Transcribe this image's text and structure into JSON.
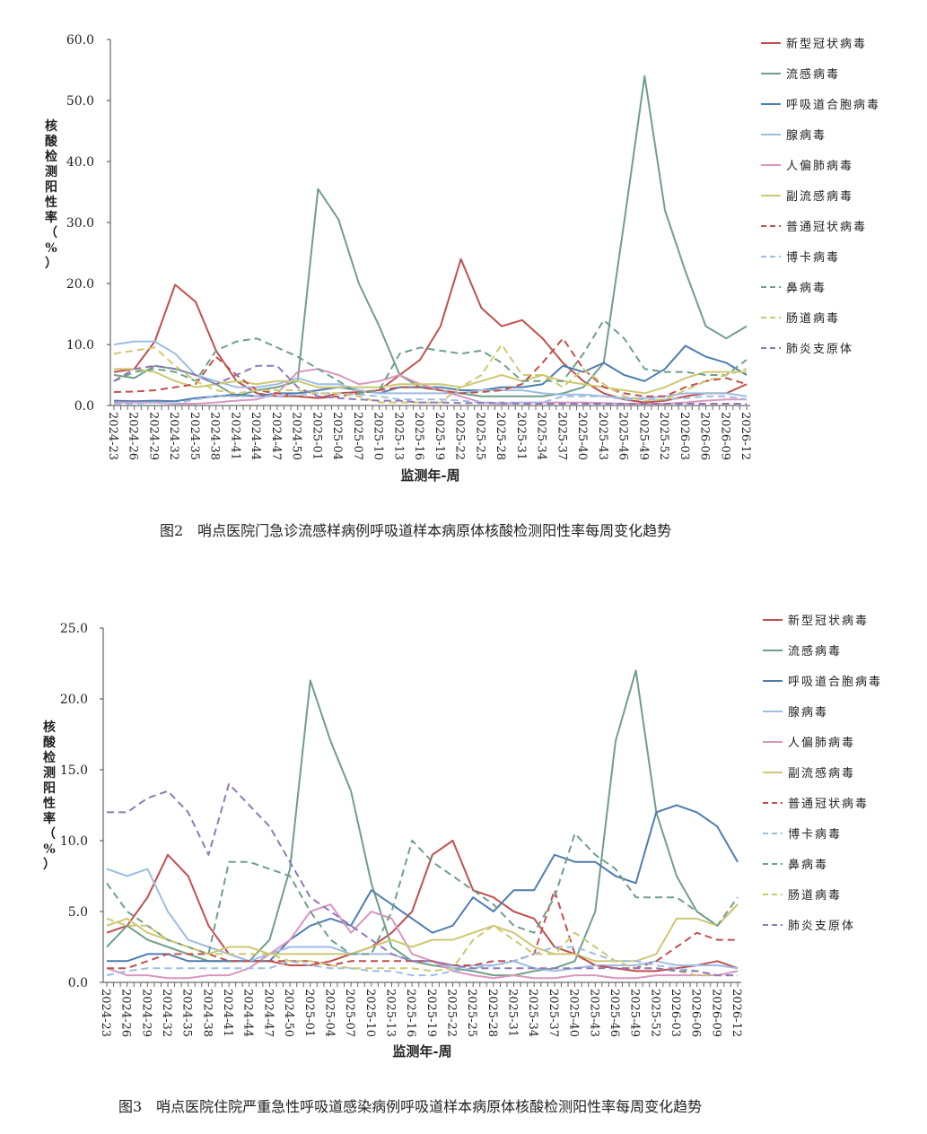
{
  "colors": {
    "新型冠状病毒": "#c0504d",
    "流感病毒": "#6f9f8a",
    "呼吸道合胞病毒": "#4f7db0",
    "腺病毒": "#9dbde3",
    "人偏肺病毒": "#d996bf",
    "副流感病毒": "#cdc872",
    "普通冠状病毒": "#c0504d",
    "博卡病毒": "#9dbde3",
    "鼻病毒": "#6f9f8a",
    "肠道病毒": "#cdc872",
    "肺炎支原体": "#8f78b8"
  },
  "chart_data": [
    {
      "type": "line",
      "caption": "图2　哨点医院门急诊流感样病例呼吸道样本病原体核酸检测阳性率每周变化趋势",
      "xlabel": "监测年-周",
      "ylabel": "核酸检测阳性率（%）",
      "ylim": [
        0,
        60
      ],
      "yticks": [
        "0.0",
        "10.0",
        "20.0",
        "30.0",
        "40.0",
        "50.0",
        "60.0"
      ],
      "legend": "right",
      "grid": false,
      "x": [
        "2024-23",
        "2024-26",
        "2024-29",
        "2024-32",
        "2024-35",
        "2024-38",
        "2024-41",
        "2024-44",
        "2024-47",
        "2024-50",
        "2025-01",
        "2025-04",
        "2025-07",
        "2025-10",
        "2025-13",
        "2025-16",
        "2025-19",
        "2025-22",
        "2025-25",
        "2025-28",
        "2025-31",
        "2025-34",
        "2025-37",
        "2025-40",
        "2025-43",
        "2025-46",
        "2025-49",
        "2025-52",
        "2026-03",
        "2026-06",
        "2026-09",
        "2026-12"
      ],
      "series": [
        {
          "name": "新型冠状病毒",
          "dash": false,
          "values": [
            5.5,
            6,
            10.5,
            19.8,
            17,
            9,
            4,
            2,
            1.5,
            1.5,
            1.2,
            2,
            2.2,
            2.5,
            5,
            7.5,
            13,
            24,
            16,
            13,
            14,
            11,
            7,
            4,
            2,
            1,
            0.5,
            0.8,
            1.5,
            2,
            2,
            3.5
          ]
        },
        {
          "name": "流感病毒",
          "dash": false,
          "values": [
            5,
            4.5,
            6.5,
            6,
            5,
            3.5,
            1.5,
            2.5,
            3,
            4,
            35.5,
            30.5,
            20,
            13,
            5,
            3,
            2.5,
            2,
            1.5,
            1.5,
            1.5,
            1.5,
            2,
            3,
            7,
            30,
            54,
            32,
            22,
            13,
            11,
            13
          ]
        },
        {
          "name": "呼吸道合胞病毒",
          "dash": false,
          "values": [
            0.8,
            0.7,
            0.8,
            0.7,
            1.2,
            1.5,
            1.8,
            1.5,
            2,
            2,
            2.5,
            3,
            2.5,
            2,
            3,
            3,
            3,
            2.5,
            2.5,
            3,
            3,
            3.5,
            6.5,
            5.5,
            7,
            5,
            4,
            6,
            9.8,
            8,
            7,
            5
          ]
        },
        {
          "name": "腺病毒",
          "dash": false,
          "values": [
            10,
            10.5,
            10.5,
            8.5,
            5,
            4,
            3,
            3,
            3.5,
            4.5,
            3.5,
            3.5,
            2.5,
            2,
            2,
            2,
            2,
            2,
            2.5,
            2.5,
            2.5,
            2,
            1.8,
            1.8,
            1.5,
            1.2,
            1.2,
            1.5,
            2,
            2,
            2,
            1.5
          ]
        },
        {
          "name": "人偏肺病毒",
          "dash": false,
          "values": [
            0.5,
            0.5,
            0.5,
            0.3,
            0.3,
            0.5,
            0.8,
            1,
            2,
            5.5,
            6,
            5,
            3.5,
            4,
            5,
            3.5,
            2.5,
            1.5,
            0.5,
            0.3,
            0.5,
            0.5,
            0.5,
            0.5,
            0.4,
            0.3,
            0.3,
            0.3,
            0.5,
            0.8,
            1,
            1
          ]
        },
        {
          "name": "副流感病毒",
          "dash": false,
          "values": [
            6,
            6,
            5.5,
            4,
            3,
            3.5,
            4,
            3.5,
            4,
            4,
            3,
            3,
            3,
            3,
            3.5,
            3.5,
            3.5,
            3,
            4,
            5,
            4,
            5,
            4,
            3.5,
            3,
            2.5,
            2,
            3,
            4.5,
            5.5,
            5.5,
            5.5
          ]
        },
        {
          "name": "普通冠状病毒",
          "dash": true,
          "values": [
            2.2,
            2.3,
            2.5,
            3,
            3.5,
            8,
            5,
            2.5,
            2,
            1.5,
            1.2,
            1.5,
            2,
            2.5,
            3,
            3,
            2.5,
            2,
            2.2,
            2.5,
            3.5,
            7,
            11,
            6,
            3,
            2,
            1.5,
            1.5,
            3,
            4,
            4.5,
            3.5
          ]
        },
        {
          "name": "博卡病毒",
          "dash": true,
          "values": [
            0.3,
            0.3,
            0.5,
            0.3,
            1,
            1.5,
            1.5,
            1.5,
            1.5,
            1.8,
            2,
            2,
            1.8,
            1.5,
            1,
            1,
            1,
            0.8,
            0.5,
            0.5,
            0.5,
            0.5,
            1.5,
            1.5,
            1.5,
            1,
            1,
            1,
            1.2,
            1.5,
            1.5,
            1
          ]
        },
        {
          "name": "鼻病毒",
          "dash": true,
          "values": [
            4,
            5.5,
            6,
            5.5,
            4,
            9,
            10.5,
            11,
            9.5,
            8,
            6,
            4,
            2,
            2.5,
            8.5,
            9.5,
            9,
            8.5,
            9,
            7,
            4,
            4,
            4,
            8.5,
            14,
            11,
            6,
            5.5,
            5.5,
            5,
            5,
            7.5
          ]
        },
        {
          "name": "肠道病毒",
          "dash": true,
          "values": [
            8.5,
            9,
            9.5,
            6.5,
            4,
            2.5,
            2,
            2.5,
            2.5,
            2.5,
            2,
            2,
            1.5,
            0.5,
            0.5,
            0.5,
            0.5,
            3,
            5,
            10,
            5,
            5,
            3,
            6,
            3.5,
            1.5,
            0.8,
            1,
            2.5,
            4,
            5,
            6
          ]
        },
        {
          "name": "肺炎支原体",
          "dash": true,
          "values": [
            4,
            6,
            6.5,
            6,
            5,
            3.5,
            5,
            6.5,
            6.5,
            3,
            1.5,
            1.2,
            1,
            0.8,
            0.8,
            0.5,
            0.5,
            0.4,
            0.4,
            0.4,
            0.3,
            0.3,
            0.3,
            0.3,
            0.3,
            0.3,
            0.3,
            0.3,
            0.3,
            0.3,
            0.3,
            0.3
          ]
        }
      ]
    },
    {
      "type": "line",
      "caption": "图3　哨点医院住院严重急性呼吸道感染病例呼吸道样本病原体核酸检测阳性率每周变化趋势",
      "xlabel": "监测年-周",
      "ylabel": "核酸检测阳性率（%）",
      "ylim": [
        0,
        25
      ],
      "yticks": [
        "0.0",
        "5.0",
        "10.0",
        "15.0",
        "20.0",
        "25.0"
      ],
      "legend": "right",
      "grid": false,
      "x": [
        "2024-23",
        "2024-26",
        "2024-29",
        "2024-32",
        "2024-35",
        "2024-38",
        "2024-41",
        "2024-44",
        "2024-47",
        "2024-50",
        "2025-01",
        "2025-04",
        "2025-07",
        "2025-10",
        "2025-13",
        "2025-16",
        "2025-19",
        "2025-22",
        "2025-25",
        "2025-28",
        "2025-31",
        "2025-34",
        "2025-37",
        "2025-40",
        "2025-43",
        "2025-46",
        "2025-49",
        "2025-52",
        "2026-03",
        "2026-06",
        "2026-09",
        "2026-12"
      ],
      "series": [
        {
          "name": "新型冠状病毒",
          "dash": false,
          "values": [
            3.5,
            4,
            6,
            9,
            7.5,
            4,
            2,
            1.5,
            1.5,
            1.2,
            1.2,
            1.5,
            2,
            2.5,
            3.5,
            5,
            9,
            10,
            6.5,
            6,
            5,
            4.5,
            2.5,
            2,
            1.2,
            1,
            0.8,
            0.8,
            1,
            1.2,
            1.5,
            1
          ]
        },
        {
          "name": "流感病毒",
          "dash": false,
          "values": [
            2.5,
            4,
            3,
            2.5,
            2,
            1.5,
            1.5,
            1.5,
            3,
            8,
            21.3,
            17,
            13.5,
            7,
            2.5,
            1.5,
            1.2,
            1,
            0.8,
            0.5,
            0.5,
            0.8,
            1,
            1.5,
            5,
            17,
            22,
            12,
            7.5,
            5,
            4,
            5.5
          ]
        },
        {
          "name": "呼吸道合胞病毒",
          "dash": false,
          "values": [
            1.5,
            1.5,
            2,
            2,
            1.5,
            1.5,
            1.5,
            1.5,
            1.5,
            3,
            4,
            4.5,
            4,
            6.5,
            5.5,
            4.5,
            3.5,
            4,
            6,
            5,
            6.5,
            6.5,
            9,
            8.5,
            8.5,
            7.5,
            7,
            12,
            12.5,
            12,
            11,
            8.5
          ]
        },
        {
          "name": "腺病毒",
          "dash": false,
          "values": [
            8,
            7.5,
            8,
            5,
            3,
            2.5,
            2,
            1.5,
            2,
            2.5,
            2.5,
            2.5,
            2,
            2,
            2,
            1.5,
            1.5,
            1,
            1.2,
            1.2,
            1.5,
            1,
            0.8,
            1,
            1.2,
            1.2,
            1.2,
            1.5,
            1.2,
            1.2,
            1.2,
            1
          ]
        },
        {
          "name": "人偏肺病毒",
          "dash": false,
          "values": [
            1,
            0.5,
            0.5,
            0.3,
            0.3,
            0.5,
            0.5,
            1,
            2,
            3,
            5,
            5.5,
            3.5,
            5,
            4.5,
            2,
            1.5,
            0.8,
            0.5,
            0.3,
            0.5,
            0.3,
            0.3,
            0.5,
            0.5,
            0.3,
            0.3,
            0.5,
            0.5,
            0.5,
            0.5,
            0.8
          ]
        },
        {
          "name": "副流感病毒",
          "dash": false,
          "values": [
            4,
            4.5,
            3.5,
            3,
            2.5,
            2,
            2.5,
            2.5,
            2,
            2,
            2,
            2,
            2,
            2.5,
            3,
            2.5,
            3,
            3,
            3.5,
            4,
            3.5,
            2.5,
            2,
            2,
            1.5,
            1.5,
            1.5,
            2,
            4.5,
            4.5,
            4,
            5.5
          ]
        },
        {
          "name": "普通冠状病毒",
          "dash": true,
          "values": [
            1,
            1,
            1.5,
            2,
            2,
            2,
            1.5,
            1.5,
            1.5,
            1.5,
            1.5,
            1.2,
            1.5,
            1.5,
            1.5,
            1.5,
            1.5,
            1.2,
            1.2,
            1.5,
            1.5,
            2,
            6.5,
            2,
            1.2,
            1,
            1,
            1.5,
            2.5,
            3.5,
            3,
            3
          ]
        },
        {
          "name": "博卡病毒",
          "dash": true,
          "values": [
            0.5,
            0.8,
            1,
            1,
            1,
            1,
            1,
            1,
            1,
            1.5,
            1.2,
            1,
            1,
            0.8,
            0.8,
            0.5,
            0.5,
            0.8,
            1,
            1.2,
            1.5,
            2,
            2.5,
            2.5,
            2,
            1.5,
            1.5,
            1.2,
            1,
            0.8,
            0.5,
            0.5
          ]
        },
        {
          "name": "鼻病毒",
          "dash": true,
          "values": [
            7,
            5,
            4,
            3,
            2.5,
            2,
            8.5,
            8.5,
            8,
            7.5,
            5,
            3,
            2,
            2,
            5,
            10,
            8.5,
            7.5,
            6.5,
            5.5,
            4,
            3.5,
            6,
            10.5,
            9,
            8,
            6,
            6,
            6,
            5,
            4,
            6
          ]
        },
        {
          "name": "肠道病毒",
          "dash": true,
          "values": [
            4.5,
            4,
            4,
            3,
            2.5,
            2,
            2,
            2,
            2,
            1.5,
            1.5,
            1.2,
            1,
            1,
            1,
            1,
            0.8,
            1,
            3,
            4,
            3,
            2,
            2,
            3.5,
            2.5,
            1.5,
            1,
            1,
            0.8,
            0.5,
            0.5,
            0.5
          ]
        },
        {
          "name": "肺炎支原体",
          "dash": true,
          "values": [
            12,
            12,
            13,
            13.5,
            12,
            9,
            14,
            12.5,
            11,
            8.5,
            6,
            5,
            4,
            3,
            2,
            1.5,
            1.5,
            1.2,
            1,
            1,
            1,
            1,
            1,
            1,
            1,
            1,
            1,
            1,
            0.8,
            0.8,
            0.5,
            0.5
          ]
        }
      ]
    }
  ]
}
